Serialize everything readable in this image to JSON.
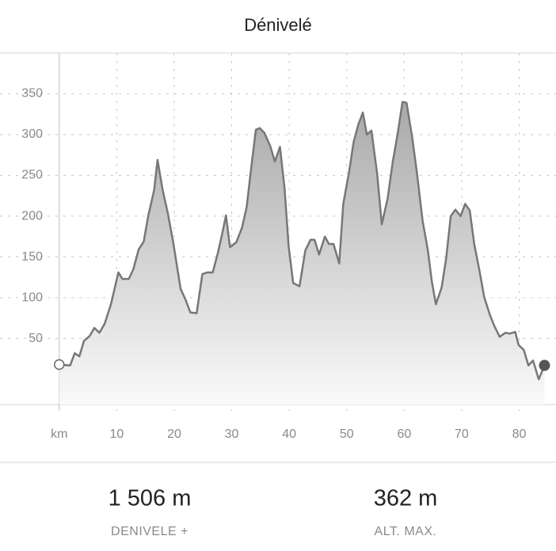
{
  "chart_data": {
    "type": "area",
    "title": "Dénivelé",
    "x": [
      0,
      1.9,
      2.7,
      3.5,
      4.3,
      5.3,
      6.1,
      7.0,
      7.9,
      9.0,
      10.3,
      11.0,
      12.1,
      12.9,
      13.8,
      14.7,
      15.5,
      16.5,
      17.1,
      18.0,
      18.9,
      19.8,
      21.1,
      22.0,
      22.8,
      23.9,
      24.9,
      25.8,
      26.7,
      27.6,
      28.4,
      29.0,
      29.7,
      30.8,
      31.8,
      32.6,
      33.5,
      34.2,
      34.9,
      35.7,
      36.7,
      37.5,
      38.4,
      39.2,
      39.9,
      40.7,
      41.8,
      42.8,
      43.7,
      44.4,
      45.2,
      46.2,
      46.9,
      47.7,
      48.7,
      49.4,
      50.4,
      51.2,
      52.0,
      52.8,
      53.5,
      54.3,
      55.3,
      56.1,
      57.1,
      58.0,
      58.9,
      59.7,
      60.4,
      61.4,
      62.2,
      63.2,
      64.1,
      64.8,
      65.5,
      66.5,
      67.3,
      68.1,
      68.9,
      69.8,
      70.6,
      71.4,
      72.2,
      73.1,
      73.9,
      74.9,
      75.7,
      76.6,
      77.6,
      78.3,
      79.3,
      79.9,
      80.8,
      81.6,
      82.4,
      83.4,
      84.4
    ],
    "values": [
      18,
      17,
      32,
      28,
      47,
      53,
      63,
      57,
      68,
      92,
      131,
      123,
      123,
      135,
      159,
      169,
      201,
      232,
      269,
      232,
      203,
      169,
      111,
      97,
      82,
      81,
      129,
      131,
      131,
      155,
      180,
      201,
      162,
      168,
      186,
      211,
      266,
      306,
      308,
      302,
      286,
      267,
      285,
      234,
      163,
      118,
      114,
      158,
      171,
      171,
      153,
      175,
      166,
      166,
      142,
      215,
      254,
      291,
      312,
      327,
      300,
      305,
      252,
      190,
      221,
      266,
      303,
      340,
      339,
      296,
      254,
      194,
      159,
      120,
      92,
      112,
      148,
      200,
      208,
      200,
      215,
      207,
      165,
      133,
      101,
      79,
      65,
      52,
      57,
      56,
      58,
      42,
      36,
      17,
      23,
      0,
      17
    ],
    "color": "#777777",
    "xlim": [
      -10.3,
      86.4
    ],
    "xticks": [
      {
        "value": 0,
        "label": "km"
      },
      10,
      20,
      30,
      40,
      50,
      60,
      70,
      80
    ],
    "ylim": [
      -31,
      400
    ],
    "yticks": [
      50,
      100,
      150,
      200,
      250,
      300,
      350
    ],
    "grid": true
  },
  "stats": [
    {
      "value": "1 506 m",
      "label": "DENIVELE +"
    },
    {
      "value": "362 m",
      "label": "ALT. MAX."
    }
  ]
}
